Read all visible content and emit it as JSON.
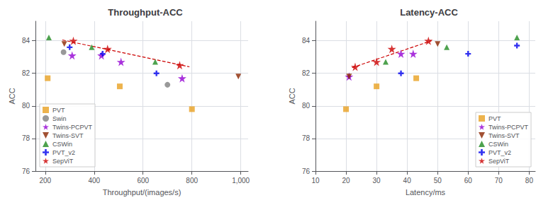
{
  "chart_data": [
    {
      "type": "scatter",
      "title": "Throughput-ACC",
      "xlabel": "Throughput/(images/s)",
      "ylabel": "ACC",
      "xlim": [
        160,
        1030
      ],
      "ylim": [
        76,
        85.2
      ],
      "xticks": [
        200,
        400,
        600,
        800,
        1000
      ],
      "yticks": [
        76,
        78,
        80,
        82,
        84
      ],
      "grid": true,
      "legend": "lower left",
      "series": [
        {
          "name": "PVT",
          "color": "#E8A020",
          "marker": "square",
          "x": [
            210,
            505,
            800
          ],
          "values": [
            81.7,
            81.2,
            79.8
          ]
        },
        {
          "name": "Swin",
          "color": "#808080",
          "marker": "circle",
          "x": [
            275,
            700
          ],
          "values": [
            83.3,
            81.3
          ]
        },
        {
          "name": "Twins-PCPVT",
          "color": "#9400D3",
          "marker": "star",
          "x": [
            310,
            430,
            510,
            760
          ],
          "values": [
            83.1,
            83.1,
            82.7,
            81.7
          ]
        },
        {
          "name": "Twins-SVT",
          "color": "#8B2500",
          "marker": "triangle-down",
          "x": [
            278,
            990
          ],
          "values": [
            83.8,
            81.8
          ]
        },
        {
          "name": "CSWin",
          "color": "#228B22",
          "marker": "triangle-up",
          "x": [
            215,
            390,
            650
          ],
          "values": [
            84.2,
            83.6,
            82.7
          ]
        },
        {
          "name": "PVT_v2",
          "color": "#0000EE",
          "marker": "plus",
          "x": [
            300,
            435,
            655
          ],
          "values": [
            83.6,
            83.2,
            82.0
          ]
        },
        {
          "name": "SepViT",
          "color": "#CC0000",
          "marker": "star",
          "x": [
            315,
            455,
            750
          ],
          "values": [
            84.0,
            83.5,
            82.5
          ]
        },
        {
          "type": "line",
          "color": "#CC0000",
          "line_style": "dashed",
          "x": [
            270,
            790
          ],
          "values": [
            84.05,
            82.4
          ]
        }
      ]
    },
    {
      "type": "scatter",
      "title": "Latency-ACC",
      "xlabel": "Latency/ms",
      "ylabel": "ACC",
      "xlim": [
        10,
        82
      ],
      "ylim": [
        76,
        85.2
      ],
      "xticks": [
        10,
        20,
        30,
        40,
        50,
        60,
        70,
        80
      ],
      "yticks": [
        76,
        78,
        80,
        82,
        84
      ],
      "grid": true,
      "legend": "lower right",
      "series": [
        {
          "name": "PVT",
          "color": "#E8A020",
          "marker": "square",
          "x": [
            20,
            30,
            43
          ],
          "values": [
            79.8,
            81.2,
            81.7
          ]
        },
        {
          "name": "Twins-PCPVT",
          "color": "#9400D3",
          "marker": "star",
          "x": [
            21,
            38,
            42
          ],
          "values": [
            81.8,
            83.2,
            83.2
          ]
        },
        {
          "name": "Twins-SVT",
          "color": "#8B2500",
          "marker": "triangle-down",
          "x": [
            21,
            50
          ],
          "values": [
            81.8,
            83.8
          ]
        },
        {
          "name": "CSWin",
          "color": "#228B22",
          "marker": "triangle-up",
          "x": [
            33,
            53,
            76
          ],
          "values": [
            82.7,
            83.6,
            84.2
          ]
        },
        {
          "name": "PVT_v2",
          "color": "#0000EE",
          "marker": "plus",
          "x": [
            38,
            60,
            76
          ],
          "values": [
            82.0,
            83.2,
            83.7
          ]
        },
        {
          "name": "SepViT",
          "color": "#CC0000",
          "marker": "star",
          "x": [
            23,
            30,
            35,
            47
          ],
          "values": [
            82.4,
            82.7,
            83.5,
            84.0
          ]
        },
        {
          "type": "line",
          "color": "#CC0000",
          "line_style": "dashed",
          "x": [
            22,
            48
          ],
          "values": [
            82.35,
            84.0
          ]
        }
      ]
    }
  ]
}
